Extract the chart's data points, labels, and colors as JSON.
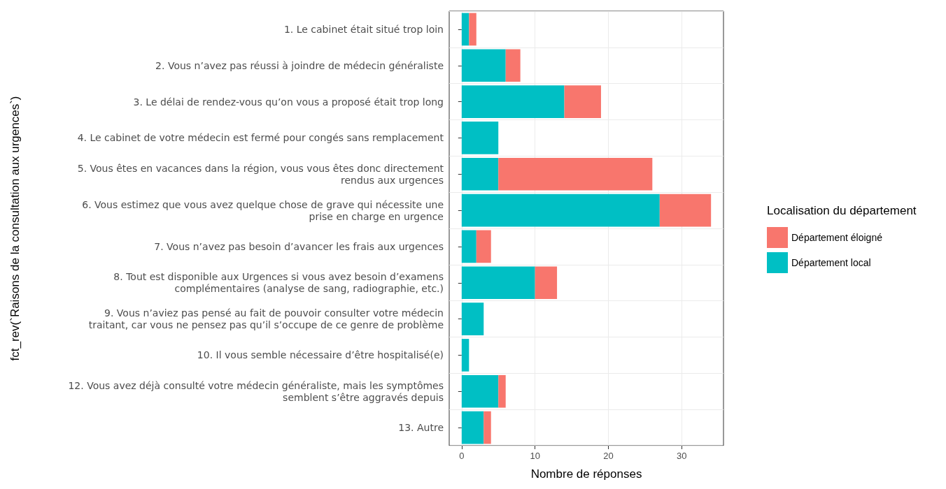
{
  "chart_data": {
    "type": "bar",
    "orientation": "horizontal",
    "stacked": true,
    "xlabel": "Nombre de réponses",
    "ylabel": "fct_rev(`Raisons de la consultation aux urgences`)",
    "legend_title": "Localisation du département",
    "categories": [
      "1. Le cabinet était situé trop loin",
      "2. Vous n’avez pas réussi à joindre de médecin généraliste",
      "3. Le délai de rendez-vous qu’on vous a proposé était trop long",
      "4. Le cabinet de votre médecin est fermé pour congés sans remplacement",
      "5. Vous êtes en vacances dans la région, vous vous êtes donc directement\nrendus aux urgences",
      "6. Vous estimez que vous avez quelque chose de grave qui nécessite une\nprise en charge en urgence",
      "7. Vous n’avez pas besoin d’avancer les frais aux urgences",
      "8. Tout est disponible aux Urgences si vous avez besoin d’examens\ncomplémentaires (analyse de sang, radiographie, etc.)",
      "9. Vous n’aviez pas pensé au fait de pouvoir consulter votre médecin\ntraitant, car vous ne pensez pas qu’il s’occupe de ce genre de problème",
      "10. Il vous semble nécessaire d’être hospitalisé(e)",
      "12. Vous avez déjà consulté votre médecin généraliste, mais les symptômes\nsemblent s’être aggravés depuis",
      "13. Autre"
    ],
    "series": [
      {
        "name": "Département local",
        "color": "#00bfc4",
        "values": [
          1,
          6,
          14,
          5,
          5,
          27,
          2,
          10,
          3,
          1,
          5,
          3
        ]
      },
      {
        "name": "Département éloigné",
        "color": "#f8766d",
        "values": [
          1,
          2,
          5,
          0,
          21,
          7,
          2,
          3,
          0,
          0,
          1,
          1
        ]
      }
    ],
    "xlim": [
      -1.7,
      35.7
    ],
    "xticks": [
      0,
      10,
      20,
      30
    ],
    "grid": true,
    "legend": "right"
  }
}
